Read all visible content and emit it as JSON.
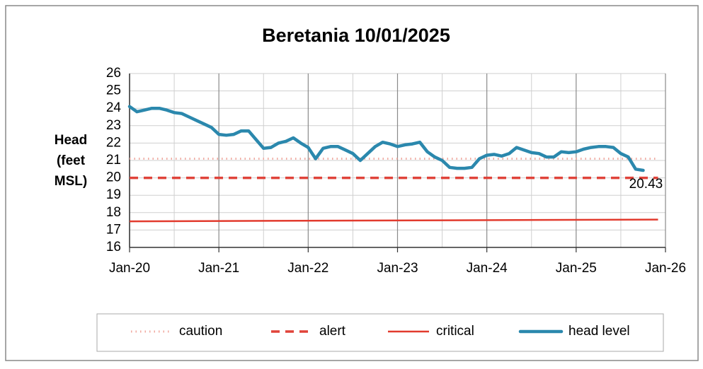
{
  "chart_data": {
    "type": "line",
    "title": "Beretania 10/01/2025",
    "y_label": [
      "Head",
      "(feet",
      "MSL)"
    ],
    "xlim": [
      "2020-01",
      "2026-01"
    ],
    "xticks": [
      {
        "value": "2020-01",
        "label": "Jan-20"
      },
      {
        "value": "2021-01",
        "label": "Jan-21"
      },
      {
        "value": "2022-01",
        "label": "Jan-22"
      },
      {
        "value": "2023-01",
        "label": "Jan-23"
      },
      {
        "value": "2024-01",
        "label": "Jan-24"
      },
      {
        "value": "2025-01",
        "label": "Jan-25"
      },
      {
        "value": "2026-01",
        "label": "Jan-26"
      }
    ],
    "xminorticks": [
      "2020-07",
      "2021-07",
      "2022-07",
      "2023-07",
      "2024-07",
      "2025-07"
    ],
    "ylim": [
      16,
      26
    ],
    "yticks": [
      16,
      17,
      18,
      19,
      20,
      21,
      22,
      23,
      24,
      25,
      26
    ],
    "grid": true,
    "legend": "bottom",
    "series": [
      {
        "name": "caution",
        "color": "#f0aaa0",
        "style": "dotted",
        "x": [
          "2020-01",
          "2025-12"
        ],
        "values": [
          21.1,
          21.1
        ]
      },
      {
        "name": "alert",
        "color": "#e0433a",
        "style": "dashed",
        "x": [
          "2020-01",
          "2025-12"
        ],
        "values": [
          20,
          20
        ]
      },
      {
        "name": "critical",
        "color": "#e23b2e",
        "style": "solid",
        "x": [
          "2020-01",
          "2025-12"
        ],
        "values": [
          17.5,
          17.6
        ]
      },
      {
        "name": "head level",
        "color": "#2b88ad",
        "style": "thick",
        "x": [
          "2020-01",
          "2020-02",
          "2020-03",
          "2020-04",
          "2020-05",
          "2020-06",
          "2020-07",
          "2020-08",
          "2020-09",
          "2020-10",
          "2020-11",
          "2020-12",
          "2021-01",
          "2021-02",
          "2021-03",
          "2021-04",
          "2021-05",
          "2021-06",
          "2021-07",
          "2021-08",
          "2021-09",
          "2021-10",
          "2021-11",
          "2021-12",
          "2022-01",
          "2022-02",
          "2022-03",
          "2022-04",
          "2022-05",
          "2022-06",
          "2022-07",
          "2022-08",
          "2022-09",
          "2022-10",
          "2022-11",
          "2022-12",
          "2023-01",
          "2023-02",
          "2023-03",
          "2023-04",
          "2023-05",
          "2023-06",
          "2023-07",
          "2023-08",
          "2023-09",
          "2023-10",
          "2023-11",
          "2023-12",
          "2024-01",
          "2024-02",
          "2024-03",
          "2024-04",
          "2024-05",
          "2024-06",
          "2024-07",
          "2024-08",
          "2024-09",
          "2024-10",
          "2024-11",
          "2024-12",
          "2025-01",
          "2025-02",
          "2025-03",
          "2025-04",
          "2025-05",
          "2025-06",
          "2025-07",
          "2025-08",
          "2025-09",
          "2025-10"
        ],
        "values": [
          24.1,
          23.8,
          23.9,
          24.0,
          24.0,
          23.9,
          23.75,
          23.7,
          23.5,
          23.3,
          23.1,
          22.9,
          22.5,
          22.45,
          22.5,
          22.7,
          22.7,
          22.2,
          21.7,
          21.75,
          22.0,
          22.1,
          22.3,
          22.0,
          21.75,
          21.1,
          21.7,
          21.8,
          21.8,
          21.6,
          21.4,
          21.0,
          21.4,
          21.8,
          22.05,
          21.95,
          21.8,
          21.9,
          21.95,
          22.05,
          21.5,
          21.2,
          21.0,
          20.6,
          20.55,
          20.55,
          20.6,
          21.1,
          21.3,
          21.35,
          21.25,
          21.4,
          21.75,
          21.6,
          21.45,
          21.4,
          21.2,
          21.2,
          21.5,
          21.45,
          21.5,
          21.65,
          21.75,
          21.8,
          21.8,
          21.75,
          21.4,
          21.2,
          20.5,
          20.43
        ]
      }
    ]
  }
}
